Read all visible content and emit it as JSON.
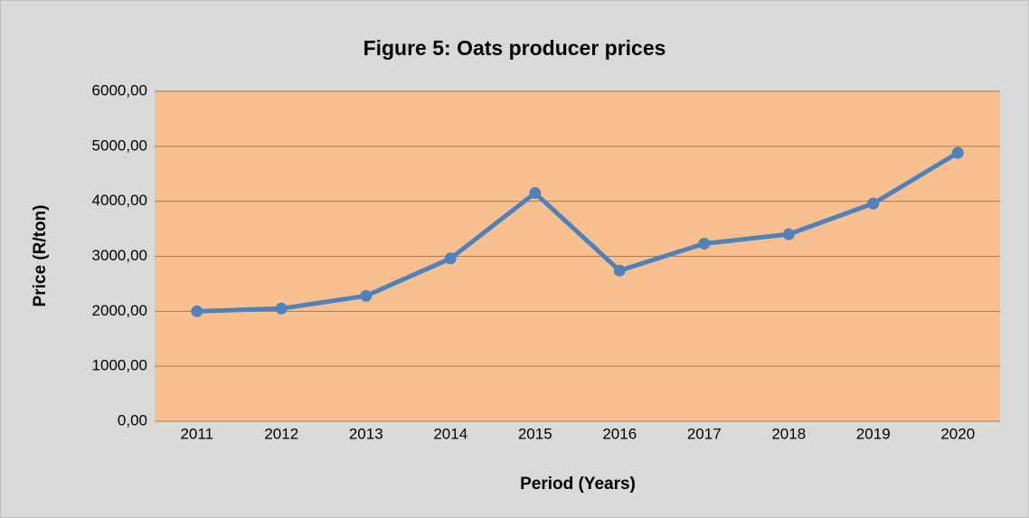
{
  "chart_data": {
    "type": "line",
    "title": "Figure 5: Oats producer prices",
    "x_label": "Period (Years)",
    "y_label": "Price (R/ton)",
    "categories": [
      "2011",
      "2012",
      "2013",
      "2014",
      "2015",
      "2016",
      "2017",
      "2018",
      "2019",
      "2020"
    ],
    "series": [
      {
        "name": "Oats producer prices",
        "color": "#4f81bd",
        "values": [
          2000,
          2050,
          2280,
          2960,
          4150,
          2740,
          3230,
          3400,
          3960,
          4880
        ]
      }
    ],
    "ylim": [
      0,
      6000
    ],
    "yticks": [
      {
        "value": 0,
        "label": "0,00"
      },
      {
        "value": 1000,
        "label": "1000,00"
      },
      {
        "value": 2000,
        "label": "2000,00"
      },
      {
        "value": 3000,
        "label": "3000,00"
      },
      {
        "value": 4000,
        "label": "4000,00"
      },
      {
        "value": 5000,
        "label": "5000,00"
      },
      {
        "value": 6000,
        "label": "6000,00"
      }
    ],
    "grid": true,
    "plot_background": "#f9c08f"
  }
}
